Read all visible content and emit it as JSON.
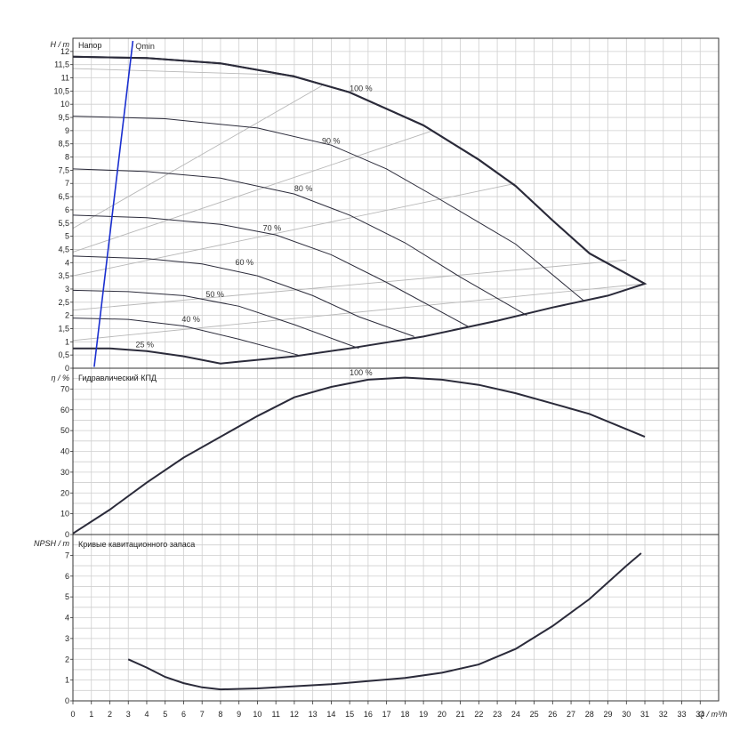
{
  "chart_data": [
    {
      "type": "line",
      "panel": "head",
      "title": "Напор",
      "ylabel": "H / m",
      "xlim": [
        0,
        35
      ],
      "ylim": [
        0,
        12.5
      ],
      "yticks": [
        0,
        0.5,
        1,
        1.5,
        2,
        2.5,
        3,
        3.5,
        4,
        4.5,
        5,
        5.5,
        6,
        6.5,
        7,
        7.5,
        8,
        8.5,
        9,
        9.5,
        10,
        10.5,
        11,
        11.5,
        12
      ],
      "speed_curves": [
        {
          "name": "100 %",
          "label_at": [
            15.0,
            10.5
          ],
          "points": [
            [
              0,
              11.8
            ],
            [
              4,
              11.75
            ],
            [
              8,
              11.55
            ],
            [
              12,
              11.05
            ],
            [
              15,
              10.45
            ],
            [
              19,
              9.2
            ],
            [
              22,
              7.9
            ],
            [
              24,
              6.9
            ],
            [
              26,
              5.6
            ],
            [
              28,
              4.35
            ],
            [
              31,
              3.2
            ]
          ]
        },
        {
          "name": "90 %",
          "label_at": [
            13.5,
            8.5
          ],
          "points": [
            [
              0,
              9.55
            ],
            [
              5,
              9.45
            ],
            [
              10,
              9.1
            ],
            [
              14,
              8.45
            ],
            [
              17,
              7.55
            ],
            [
              20,
              6.35
            ],
            [
              24,
              4.7
            ],
            [
              27.7,
              2.55
            ]
          ]
        },
        {
          "name": "80 %",
          "label_at": [
            12.0,
            6.7
          ],
          "points": [
            [
              0,
              7.55
            ],
            [
              4,
              7.45
            ],
            [
              8,
              7.2
            ],
            [
              12,
              6.6
            ],
            [
              15,
              5.8
            ],
            [
              18,
              4.75
            ],
            [
              21,
              3.45
            ],
            [
              24.6,
              2.0
            ]
          ]
        },
        {
          "name": "70 %",
          "label_at": [
            10.3,
            5.2
          ],
          "points": [
            [
              0,
              5.8
            ],
            [
              4,
              5.7
            ],
            [
              8,
              5.45
            ],
            [
              11,
              5.05
            ],
            [
              14,
              4.3
            ],
            [
              17,
              3.25
            ],
            [
              21.5,
              1.55
            ]
          ]
        },
        {
          "name": "60 %",
          "label_at": [
            8.8,
            3.9
          ],
          "points": [
            [
              0,
              4.25
            ],
            [
              4,
              4.15
            ],
            [
              7,
              3.95
            ],
            [
              10,
              3.5
            ],
            [
              13,
              2.75
            ],
            [
              15.5,
              1.95
            ],
            [
              18.5,
              1.2
            ]
          ]
        },
        {
          "name": "50 %",
          "label_at": [
            7.2,
            2.7
          ],
          "points": [
            [
              0,
              2.95
            ],
            [
              3,
              2.9
            ],
            [
              6,
              2.75
            ],
            [
              9,
              2.35
            ],
            [
              12,
              1.65
            ],
            [
              15.5,
              0.75
            ]
          ]
        },
        {
          "name": "40 %",
          "label_at": [
            5.9,
            1.75
          ],
          "points": [
            [
              0,
              1.9
            ],
            [
              3,
              1.85
            ],
            [
              6,
              1.6
            ],
            [
              9,
              1.1
            ],
            [
              12.2,
              0.5
            ]
          ]
        },
        {
          "name": "25 %",
          "label_at": [
            3.4,
            0.8
          ],
          "points": [
            [
              0,
              0.75
            ],
            [
              2,
              0.75
            ],
            [
              4,
              0.65
            ],
            [
              6,
              0.45
            ],
            [
              8,
              0.18
            ]
          ]
        }
      ],
      "max_operating_limit": {
        "points": [
          [
            0,
            11.8
          ],
          [
            4,
            11.75
          ],
          [
            8,
            11.55
          ],
          [
            12,
            11.05
          ],
          [
            15,
            10.45
          ],
          [
            19,
            9.2
          ],
          [
            22,
            7.9
          ],
          [
            24,
            6.9
          ],
          [
            26,
            5.6
          ],
          [
            28,
            4.35
          ],
          [
            31,
            3.2
          ],
          [
            29,
            2.75
          ],
          [
            26,
            2.3
          ],
          [
            23,
            1.8
          ],
          [
            19,
            1.2
          ],
          [
            15,
            0.75
          ],
          [
            12,
            0.45
          ],
          [
            9,
            0.25
          ],
          [
            8,
            0.18
          ],
          [
            6,
            0.45
          ],
          [
            4,
            0.65
          ],
          [
            2,
            0.75
          ],
          [
            0,
            0.75
          ]
        ]
      },
      "system_lines": [
        {
          "points": [
            [
              0,
              5.3
            ],
            [
              13.5,
              10.7
            ]
          ]
        },
        {
          "points": [
            [
              0,
              4.4
            ],
            [
              19.5,
              9.0
            ]
          ]
        },
        {
          "points": [
            [
              0,
              3.5
            ],
            [
              24,
              7.0
            ]
          ]
        },
        {
          "points": [
            [
              0,
              2.2
            ],
            [
              30,
              4.1
            ]
          ]
        },
        {
          "points": [
            [
              0,
              1.05
            ],
            [
              31,
              3.2
            ]
          ]
        },
        {
          "points": [
            [
              0,
              11.35
            ],
            [
              12,
              11.1
            ]
          ]
        }
      ],
      "qmin": {
        "label": "Qmin",
        "points": [
          [
            1.15,
            0.05
          ],
          [
            3.25,
            12.4
          ]
        ]
      }
    },
    {
      "type": "line",
      "panel": "efficiency",
      "title": "Гидравлический КПД",
      "ylabel": "η / %",
      "xlim": [
        0,
        35
      ],
      "ylim": [
        0,
        80
      ],
      "yticks": [
        0,
        10,
        20,
        30,
        40,
        50,
        60,
        70
      ],
      "series": [
        {
          "name": "100 %",
          "label_at": [
            15.0,
            76.5
          ],
          "points": [
            [
              0,
              0.5
            ],
            [
              2,
              12
            ],
            [
              4,
              25
            ],
            [
              6,
              37
            ],
            [
              8,
              47
            ],
            [
              10,
              57
            ],
            [
              12,
              66
            ],
            [
              14,
              71
            ],
            [
              16,
              74.5
            ],
            [
              18,
              75.5
            ],
            [
              20,
              74.5
            ],
            [
              22,
              72
            ],
            [
              24,
              68
            ],
            [
              26,
              63
            ],
            [
              28,
              58
            ],
            [
              31,
              47
            ]
          ]
        }
      ]
    },
    {
      "type": "line",
      "panel": "npsh",
      "title": "Кривые кавитационного запаса",
      "ylabel": "NPSH / m",
      "xlabel": "Q / m³/h",
      "xlim": [
        0,
        35
      ],
      "ylim": [
        0,
        8
      ],
      "yticks": [
        0,
        1,
        2,
        3,
        4,
        5,
        6,
        7
      ],
      "xticks": [
        0,
        1,
        2,
        3,
        4,
        5,
        6,
        7,
        8,
        9,
        10,
        11,
        12,
        13,
        14,
        15,
        16,
        17,
        18,
        19,
        20,
        21,
        22,
        23,
        24,
        25,
        26,
        27,
        28,
        29,
        30,
        31,
        32,
        33,
        34
      ],
      "series": [
        {
          "points": [
            [
              3,
              2.0
            ],
            [
              4,
              1.6
            ],
            [
              5,
              1.15
            ],
            [
              6,
              0.85
            ],
            [
              7,
              0.65
            ],
            [
              8,
              0.55
            ],
            [
              10,
              0.6
            ],
            [
              12,
              0.7
            ],
            [
              14,
              0.8
            ],
            [
              16,
              0.95
            ],
            [
              18,
              1.1
            ],
            [
              20,
              1.35
            ],
            [
              22,
              1.75
            ],
            [
              24,
              2.5
            ],
            [
              26,
              3.6
            ],
            [
              28,
              4.9
            ],
            [
              30,
              6.5
            ],
            [
              30.8,
              7.1
            ]
          ]
        }
      ]
    }
  ]
}
